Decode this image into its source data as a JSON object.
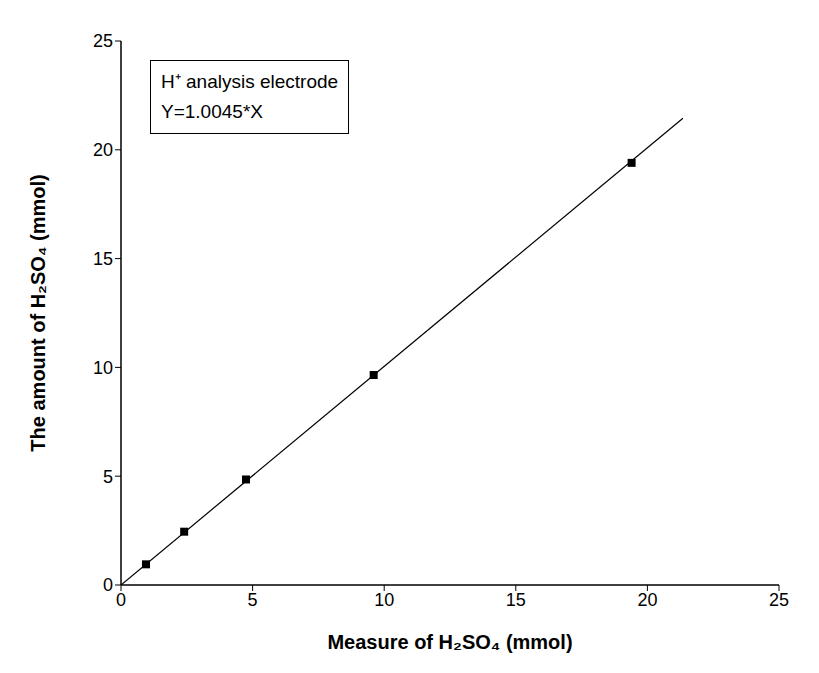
{
  "chart_data": {
    "type": "scatter",
    "annotation": [
      "H⁺ analysis electrode",
      "Y=1.0045*X"
    ],
    "x_label": "Measure of H₂SO₄ (mmol)",
    "y_label": "The amount of H₂SO₄ (mmol)",
    "x": [
      0.95,
      2.4,
      4.75,
      9.6,
      19.4
    ],
    "values": [
      0.95,
      2.45,
      4.85,
      9.65,
      19.4
    ],
    "color": "#000000",
    "marker": "square",
    "fit_line": {
      "x": [
        0,
        21.35
      ],
      "values": [
        0,
        21.45
      ],
      "color": "#000000",
      "line_style": "solid"
    },
    "xlim": [
      0,
      25
    ],
    "ylim": [
      0,
      25
    ],
    "xticks": [
      0,
      5,
      10,
      15,
      20,
      25
    ],
    "yticks": [
      0,
      5,
      10,
      15,
      20,
      25
    ],
    "grid": false
  }
}
